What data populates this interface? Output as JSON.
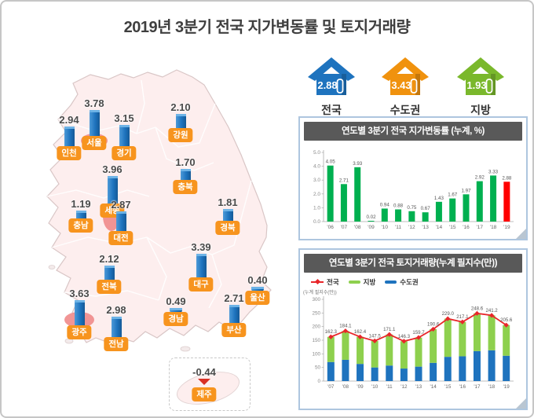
{
  "title": "2019년 3분기 전국 지가변동률 및 토지거래량",
  "summary": {
    "items": [
      {
        "id": "national",
        "label": "전국",
        "value": "2.88",
        "color": "#1e73be"
      },
      {
        "id": "capital",
        "label": "수도권",
        "value": "3.43",
        "color": "#f0920e"
      },
      {
        "id": "regional",
        "label": "지방",
        "value": "1.93",
        "color": "#7ab82c"
      }
    ]
  },
  "map": {
    "land_color": "#fdeeee",
    "highlight_color": "#f08a8a",
    "bar_color": "#1e73be",
    "label_bg": "#f7941e",
    "regions": [
      {
        "id": "seoul",
        "label": "서울",
        "value": "3.78",
        "highlighted": true
      },
      {
        "id": "incheon",
        "label": "인천",
        "value": "2.94"
      },
      {
        "id": "gyeonggi",
        "label": "경기",
        "value": "3.15"
      },
      {
        "id": "gangwon",
        "label": "강원",
        "value": "2.10"
      },
      {
        "id": "chungbuk",
        "label": "충북",
        "value": "1.70"
      },
      {
        "id": "sejong",
        "label": "세종",
        "value": "3.96",
        "highlighted": true
      },
      {
        "id": "chungnam",
        "label": "충남",
        "value": "1.19"
      },
      {
        "id": "daejeon",
        "label": "대전",
        "value": "2.87"
      },
      {
        "id": "gyeongbuk",
        "label": "경북",
        "value": "1.81"
      },
      {
        "id": "jeonbuk",
        "label": "전북",
        "value": "2.12"
      },
      {
        "id": "daegu",
        "label": "대구",
        "value": "3.39"
      },
      {
        "id": "gwangju",
        "label": "광주",
        "value": "3.63",
        "highlighted": true
      },
      {
        "id": "jeonnam",
        "label": "전남",
        "value": "2.98"
      },
      {
        "id": "gyeongnam",
        "label": "경남",
        "value": "0.49"
      },
      {
        "id": "busan",
        "label": "부산",
        "value": "2.71"
      },
      {
        "id": "ulsan",
        "label": "울산",
        "value": "0.40"
      },
      {
        "id": "jeju",
        "label": "제주",
        "value": "-0.44",
        "negative": true
      }
    ]
  },
  "chart_data": [
    {
      "type": "bar",
      "title": "연도별 3분기 전국 지가변동률 (누계, %)",
      "categories": [
        "'06",
        "'07",
        "'08",
        "'09",
        "'10",
        "'11",
        "'12",
        "'13",
        "'14",
        "'15",
        "'16",
        "'17",
        "'18",
        "'19"
      ],
      "values": [
        4.05,
        2.71,
        3.93,
        0.02,
        0.94,
        0.88,
        0.75,
        0.67,
        1.43,
        1.67,
        1.97,
        2.92,
        3.33,
        2.88
      ],
      "bar_color": "#00b050",
      "last_bar_color": "#ff0000",
      "ylim": [
        0,
        5
      ],
      "yticks": [
        "0.0",
        "1.0",
        "2.0",
        "3.0",
        "4.0",
        "5.0"
      ],
      "grid": false,
      "legend": "none"
    },
    {
      "type": "stacked-bar+line",
      "title": "연도별 3분기 전국 토지거래량(누계 필지수(만))",
      "axis_caption": "(누계 필지수(만))",
      "categories": [
        "'07",
        "'08",
        "'09",
        "'10",
        "'11",
        "'12",
        "'13",
        "'14",
        "'15",
        "'16",
        "'17",
        "'18",
        "'19"
      ],
      "series": [
        {
          "name": "전국",
          "type": "line",
          "color": "#e8262a",
          "values": [
            162.3,
            184.1,
            162.4,
            147.5,
            171.1,
            146.3,
            159.7,
            190.6,
            229.0,
            217.1,
            248.6,
            241.2,
            205.6
          ]
        },
        {
          "name": "지방",
          "type": "bar",
          "color": "#8ed04e",
          "values": [
            92.3,
            106.1,
            99.4,
            97.5,
            114.1,
            100.3,
            106.7,
            123.6,
            140.0,
            126.1,
            138.6,
            128.2,
            112.6
          ]
        },
        {
          "name": "수도권",
          "type": "bar",
          "color": "#1e73be",
          "values": [
            70.0,
            78.0,
            63.0,
            50.0,
            57.0,
            46.0,
            53.0,
            67.0,
            89.0,
            91.0,
            110.0,
            113.0,
            93.0
          ]
        }
      ],
      "ylim": [
        0,
        300
      ],
      "yticks": [
        "0",
        "50",
        "100",
        "150",
        "200",
        "250",
        "300"
      ],
      "grid": false,
      "legend_position": "top-left"
    }
  ]
}
